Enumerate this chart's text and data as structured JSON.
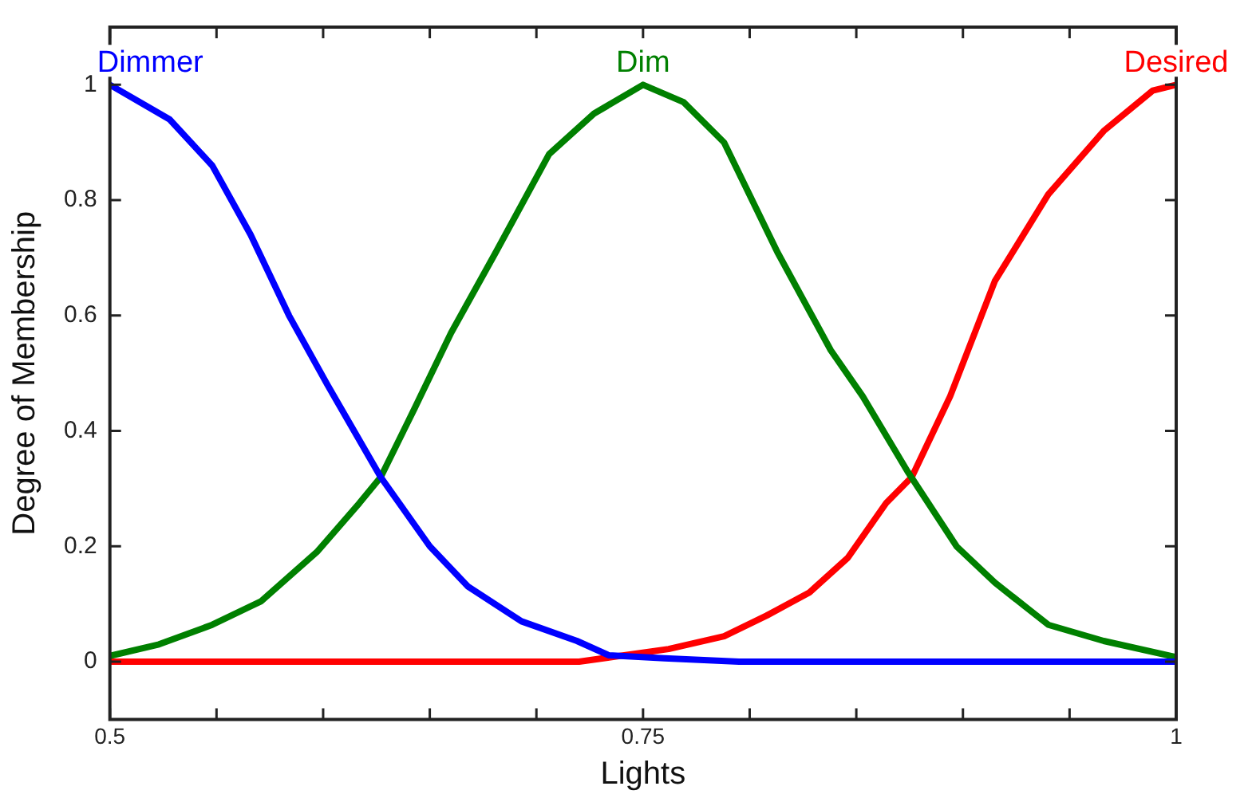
{
  "chart_data": {
    "type": "line",
    "xlabel": "Lights",
    "ylabel": "Degree of Membership",
    "xlim": [
      0.5,
      1
    ],
    "ylim": [
      -0.1,
      1.1
    ],
    "xticks": [
      0.5,
      {
        "value": 0.55,
        "label": null
      },
      {
        "value": 0.6,
        "label": null
      },
      {
        "value": 0.65,
        "label": null
      },
      {
        "value": 0.7,
        "label": null
      },
      0.75,
      {
        "value": 0.8,
        "label": null
      },
      {
        "value": 0.85,
        "label": null
      },
      {
        "value": 0.9,
        "label": null
      },
      {
        "value": 0.95,
        "label": null
      },
      1
    ],
    "yticks": [
      0,
      0.2,
      0.4,
      0.6,
      0.8,
      1
    ],
    "grid": false,
    "legend": false,
    "marker": "none",
    "line_style": "solid",
    "series": [
      {
        "name": "Dimmer",
        "color": "#0000ff",
        "x": [
          0.5,
          0.528,
          0.548,
          0.566,
          0.584,
          0.602,
          0.627,
          0.65,
          0.668,
          0.693,
          0.719,
          0.734,
          0.76,
          0.795,
          1
        ],
        "values": [
          1,
          0.94,
          0.86,
          0.74,
          0.6,
          0.48,
          0.32,
          0.2,
          0.13,
          0.07,
          0.036,
          0.011,
          0.006,
          0,
          0
        ]
      },
      {
        "name": "Dim",
        "color": "#008000",
        "x": [
          0.5,
          0.523,
          0.548,
          0.571,
          0.597,
          0.617,
          0.627,
          0.643,
          0.66,
          0.681,
          0.706,
          0.727,
          0.75,
          0.769,
          0.788,
          0.813,
          0.838,
          0.853,
          0.874,
          0.897,
          0.915,
          0.94,
          0.966,
          1
        ],
        "values": [
          0.01,
          0.03,
          0.064,
          0.105,
          0.19,
          0.275,
          0.32,
          0.44,
          0.57,
          0.71,
          0.88,
          0.95,
          1,
          0.97,
          0.9,
          0.71,
          0.54,
          0.46,
          0.33,
          0.2,
          0.137,
          0.064,
          0.036,
          0.008
        ]
      },
      {
        "name": "Desired",
        "color": "#ff0000",
        "x": [
          0.5,
          0.72,
          0.762,
          0.788,
          0.808,
          0.828,
          0.846,
          0.864,
          0.876,
          0.894,
          0.915,
          0.94,
          0.966,
          0.989,
          1
        ],
        "values": [
          0,
          0,
          0.022,
          0.044,
          0.08,
          0.12,
          0.18,
          0.275,
          0.32,
          0.46,
          0.66,
          0.81,
          0.92,
          0.99,
          1
        ]
      }
    ]
  }
}
